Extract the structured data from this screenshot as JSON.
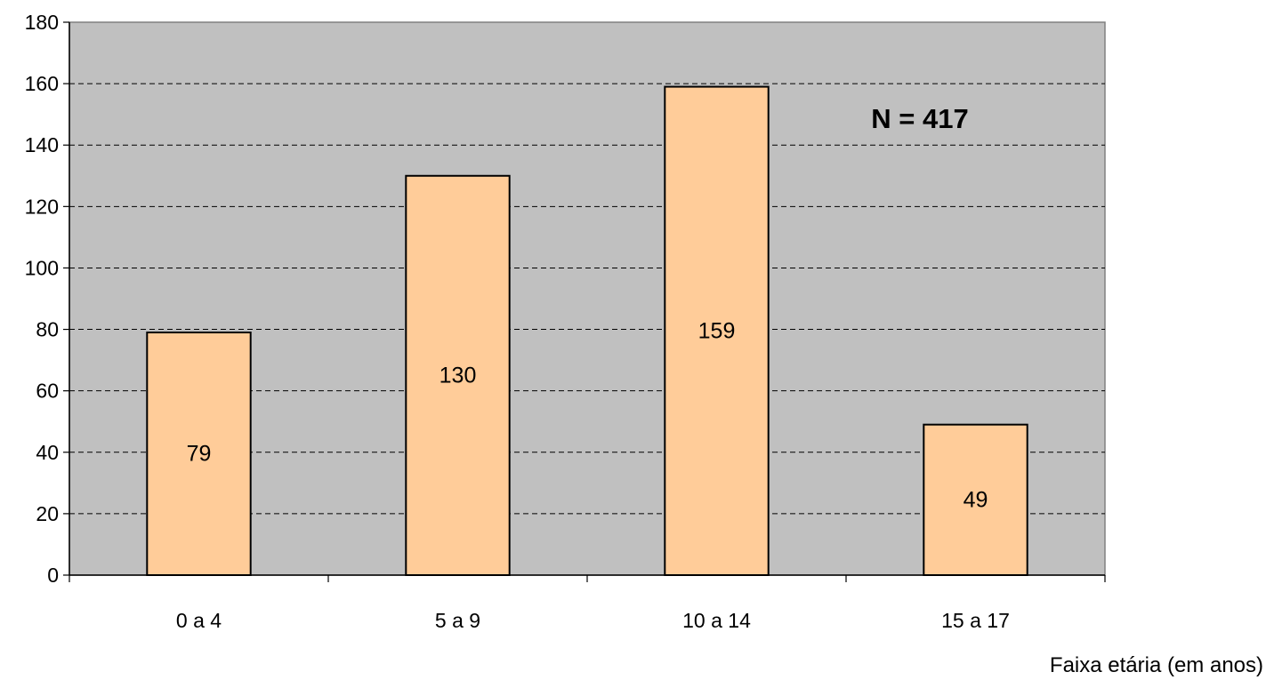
{
  "chart_data": {
    "type": "bar",
    "categories": [
      "0 a 4",
      "5 a 9",
      "10 a 14",
      "15 a 17"
    ],
    "values": [
      79,
      130,
      159,
      49
    ],
    "data_labels": [
      "79",
      "130",
      "159",
      "49"
    ],
    "title": "",
    "xlabel": "Faixa etária (em anos)",
    "ylabel": "",
    "ylim": [
      0,
      180
    ],
    "yticks": [
      "0",
      "20",
      "40",
      "60",
      "80",
      "100",
      "120",
      "140",
      "160",
      "180"
    ],
    "grid": "horizontal dashed",
    "annotation": "N = 417",
    "colors": {
      "plot_background": "#c0c0c0",
      "bar_fill": "#ffcc99",
      "bar_stroke": "#000000",
      "gridline": "#000000"
    }
  }
}
